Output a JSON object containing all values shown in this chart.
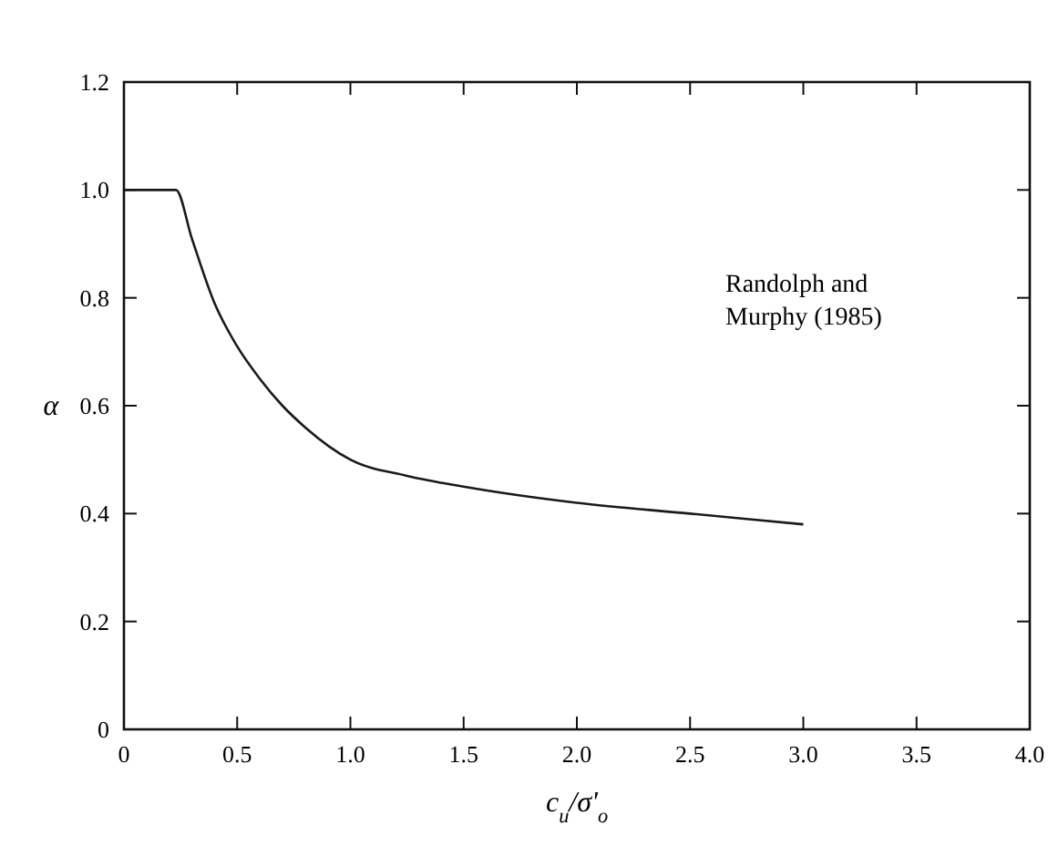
{
  "chart_data": {
    "type": "line",
    "xlabel": "c$_{u}$/σ'$_{o}$",
    "ylabel": "α",
    "x": [
      0,
      0.23,
      0.3,
      0.4,
      0.5,
      0.6,
      0.7,
      0.8,
      1.0,
      1.25,
      1.5,
      2.0,
      2.5,
      3.0
    ],
    "series": [
      {
        "color": "#1a1a1a",
        "values": [
          1.0,
          1.0,
          0.91,
          0.79,
          0.71,
          0.65,
          0.6,
          0.56,
          0.5,
          0.47,
          0.45,
          0.42,
          0.4,
          0.38
        ]
      }
    ],
    "xlim": [
      0,
      4
    ],
    "xticks": [
      0,
      {
        "value": 0.5,
        "label": "0.5"
      },
      {
        "value": 1,
        "label": "1.0"
      },
      {
        "value": 1.5,
        "label": "1.5"
      },
      {
        "value": 2,
        "label": "2.0"
      },
      {
        "value": 2.5,
        "label": "2.5"
      },
      {
        "value": 3,
        "label": "3.0"
      },
      {
        "value": 3.5,
        "label": "3.5"
      },
      {
        "value": 4,
        "label": "4.0"
      }
    ],
    "ylim": [
      0,
      1.2
    ],
    "yticks": [
      0,
      {
        "value": 0.2,
        "label": "0.2"
      },
      {
        "value": 0.4,
        "label": "0.4"
      },
      {
        "value": 0.6,
        "label": "0.6"
      },
      {
        "value": 0.8,
        "label": "0.8"
      },
      {
        "value": 1,
        "label": "1.0"
      },
      {
        "value": 1.2,
        "label": "1.2"
      }
    ],
    "annotations": [
      "Randolph and\nMurphy (1985)"
    ],
    "grid": false,
    "marker": "none",
    "line_style": "solid"
  }
}
